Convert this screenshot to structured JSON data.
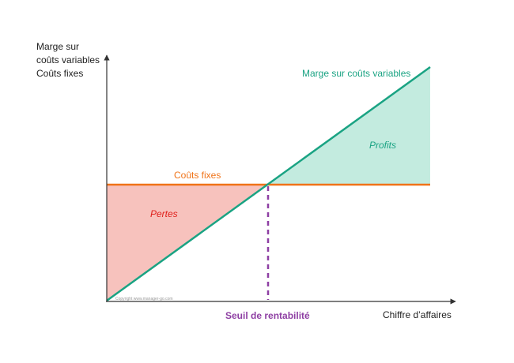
{
  "y_axis_labels": [
    "Marge sur",
    "coûts variables",
    "Coûts fixes"
  ],
  "x_axis_label": "Chiffre d’affaires",
  "line_margin_label": "Marge sur coûts variables",
  "line_fixed_label": "Coûts fixes",
  "region_profit_label": "Profits",
  "region_loss_label": "Pertes",
  "breakeven_label": "Seuil de rentabilité",
  "copyright": "Copyright www.manager-go.com",
  "colors": {
    "axis": "#333333",
    "margin_line": "#1aa383",
    "fixed_line": "#f07318",
    "profit_fill": "#c3ebdf",
    "loss_fill": "#f7c2bd",
    "breakeven": "#8e3fa3",
    "text": "#222222"
  }
}
